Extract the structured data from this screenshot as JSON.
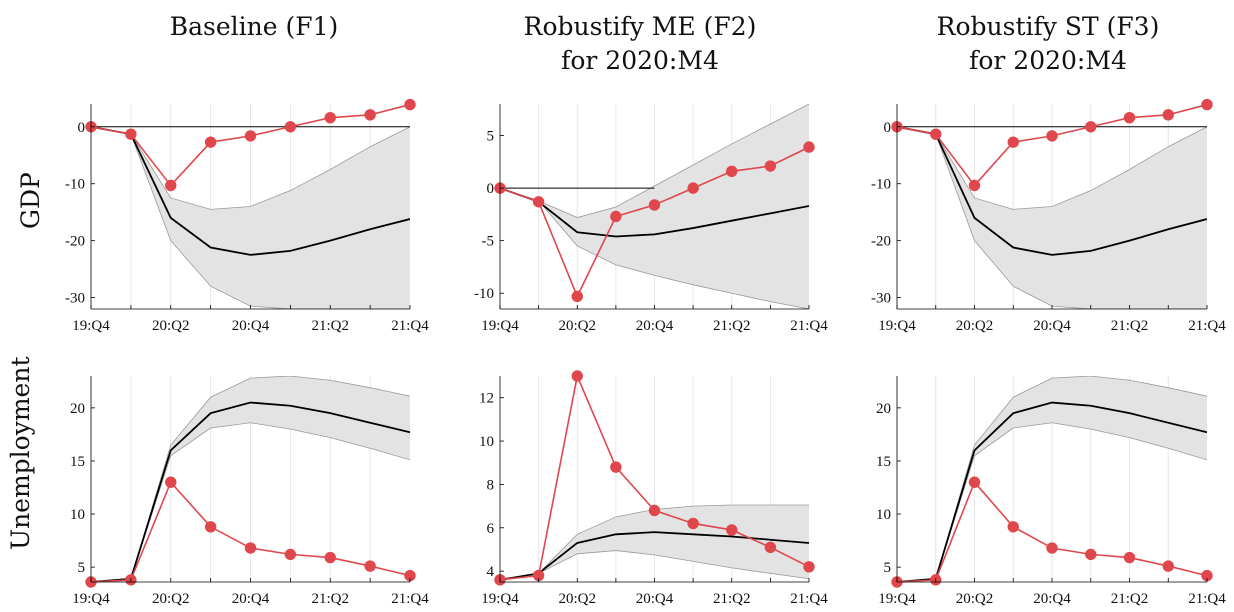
{
  "column_titles": [
    {
      "line1": "Baseline (F1)",
      "line2": ""
    },
    {
      "line1": "Robustify ME (F2)",
      "line2": "for 2020:M4"
    },
    {
      "line1": "Robustify ST (F3)",
      "line2": "for 2020:M4"
    }
  ],
  "row_labels": [
    "GDP",
    "Unemployment"
  ],
  "colors": {
    "median": "#000000",
    "observed": "#e0474c",
    "band": "#e3e3e3",
    "band_edge": "#9a9a9a",
    "grid": "#e6e6e6",
    "zero_line": "#000000"
  },
  "chart_data": [
    {
      "id": "gdp-baseline",
      "type": "line",
      "xlim": [
        0,
        8
      ],
      "ylim": [
        -32,
        4
      ],
      "categories": [
        "19:Q4",
        "20:Q1",
        "20:Q2",
        "20:Q3",
        "20:Q4",
        "21:Q1",
        "21:Q2",
        "21:Q3",
        "21:Q4"
      ],
      "xtick_labels": [
        "19:Q4",
        "",
        "20:Q2",
        "",
        "20:Q4",
        "",
        "21:Q2",
        "",
        "21:Q4"
      ],
      "yticks": [
        0,
        -10,
        -20,
        -30
      ],
      "ytick_labels": [
        "0",
        "-10",
        "-20",
        "-30"
      ],
      "zero_line": [
        0,
        8
      ],
      "band": {
        "upper": [
          0,
          -1.3,
          -12.5,
          -14.5,
          -14.0,
          -11.2,
          -7.5,
          -3.5,
          0
        ],
        "lower": [
          0,
          -1.3,
          -20,
          -28,
          -31.5,
          -32,
          -32,
          -32,
          -32
        ]
      },
      "series": [
        {
          "values": [
            0,
            -1.3,
            -16.0,
            -21.2,
            -22.5,
            -21.8,
            -20.0,
            -18.0,
            -16.2
          ]
        },
        {
          "values": [
            0,
            -1.3,
            -10.3,
            -2.7,
            -1.6,
            0,
            1.6,
            2.1,
            3.9
          ],
          "markers": true
        }
      ]
    },
    {
      "id": "gdp-robust-me",
      "type": "line",
      "xlim": [
        0,
        8
      ],
      "ylim": [
        -11.5,
        8
      ],
      "categories": [
        "19:Q4",
        "20:Q1",
        "20:Q2",
        "20:Q3",
        "20:Q4",
        "21:Q1",
        "21:Q2",
        "21:Q3",
        "21:Q4"
      ],
      "xtick_labels": [
        "19:Q4",
        "",
        "20:Q2",
        "",
        "20:Q4",
        "",
        "21:Q2",
        "",
        "21:Q4"
      ],
      "yticks": [
        5,
        0,
        -5,
        -10
      ],
      "ytick_labels": [
        "5",
        "0",
        "-5",
        "-10"
      ],
      "zero_line": [
        0,
        4
      ],
      "band": {
        "upper": [
          0,
          -1.2,
          -2.8,
          -1.8,
          0.2,
          2.2,
          4.2,
          6.1,
          8.0
        ],
        "lower": [
          0,
          -1.2,
          -5.5,
          -7.3,
          -8.3,
          -9.2,
          -10.0,
          -10.8,
          -11.5
        ]
      },
      "series": [
        {
          "values": [
            0,
            -1.3,
            -4.2,
            -4.6,
            -4.4,
            -3.8,
            -3.1,
            -2.4,
            -1.7
          ]
        },
        {
          "values": [
            0,
            -1.3,
            -10.3,
            -2.7,
            -1.6,
            0,
            1.6,
            2.1,
            3.9
          ],
          "markers": true
        }
      ]
    },
    {
      "id": "gdp-robust-st",
      "type": "line",
      "xlim": [
        0,
        8
      ],
      "ylim": [
        -32,
        4
      ],
      "categories": [
        "19:Q4",
        "20:Q1",
        "20:Q2",
        "20:Q3",
        "20:Q4",
        "21:Q1",
        "21:Q2",
        "21:Q3",
        "21:Q4"
      ],
      "xtick_labels": [
        "19:Q4",
        "",
        "20:Q2",
        "",
        "20:Q4",
        "",
        "21:Q2",
        "",
        "21:Q4"
      ],
      "yticks": [
        0,
        -10,
        -20,
        -30
      ],
      "ytick_labels": [
        "0",
        "-10",
        "-20",
        "-30"
      ],
      "zero_line": [
        0,
        8
      ],
      "band": {
        "upper": [
          0,
          -1.3,
          -12.5,
          -14.5,
          -14.0,
          -11.2,
          -7.5,
          -3.5,
          0
        ],
        "lower": [
          0,
          -1.3,
          -20,
          -28,
          -31.5,
          -32,
          -32,
          -32,
          -32
        ]
      },
      "series": [
        {
          "values": [
            0,
            -1.3,
            -16.0,
            -21.2,
            -22.5,
            -21.8,
            -20.0,
            -18.0,
            -16.2
          ]
        },
        {
          "values": [
            0,
            -1.3,
            -10.3,
            -2.7,
            -1.6,
            0,
            1.6,
            2.1,
            3.9
          ],
          "markers": true
        }
      ]
    },
    {
      "id": "unemp-baseline",
      "type": "line",
      "xlim": [
        0,
        8
      ],
      "ylim": [
        3.6,
        23
      ],
      "categories": [
        "19:Q4",
        "20:Q1",
        "20:Q2",
        "20:Q3",
        "20:Q4",
        "21:Q1",
        "21:Q2",
        "21:Q3",
        "21:Q4"
      ],
      "xtick_labels": [
        "19:Q4",
        "",
        "20:Q2",
        "",
        "20:Q4",
        "",
        "21:Q2",
        "",
        "21:Q4"
      ],
      "yticks": [
        20,
        15,
        10,
        5
      ],
      "ytick_labels": [
        "20",
        "15",
        "10",
        "5"
      ],
      "band": {
        "upper": [
          3.6,
          3.9,
          16.5,
          21.0,
          22.8,
          23.0,
          22.6,
          21.9,
          21.1
        ],
        "lower": [
          3.6,
          3.9,
          15.5,
          18.1,
          18.6,
          18.0,
          17.2,
          16.2,
          15.1
        ]
      },
      "series": [
        {
          "values": [
            3.6,
            3.9,
            16.0,
            19.5,
            20.5,
            20.2,
            19.5,
            18.6,
            17.7
          ]
        },
        {
          "values": [
            3.6,
            3.8,
            13.0,
            8.8,
            6.8,
            6.2,
            5.9,
            5.1,
            4.2
          ],
          "markers": true
        }
      ]
    },
    {
      "id": "unemp-robust-me",
      "type": "line",
      "xlim": [
        0,
        8
      ],
      "ylim": [
        3.5,
        13
      ],
      "categories": [
        "19:Q4",
        "20:Q1",
        "20:Q2",
        "20:Q3",
        "20:Q4",
        "21:Q1",
        "21:Q2",
        "21:Q3",
        "21:Q4"
      ],
      "xtick_labels": [
        "19:Q4",
        "",
        "20:Q2",
        "",
        "20:Q4",
        "",
        "21:Q2",
        "",
        "21:Q4"
      ],
      "yticks": [
        12,
        10,
        8,
        6,
        4
      ],
      "ytick_labels": [
        "12",
        "10",
        "8",
        "6",
        "4"
      ],
      "band": {
        "upper": [
          3.6,
          3.9,
          5.7,
          6.5,
          6.85,
          7.0,
          7.05,
          7.05,
          7.05
        ],
        "lower": [
          3.6,
          3.9,
          4.8,
          4.95,
          4.75,
          4.45,
          4.15,
          3.9,
          3.65
        ]
      },
      "series": [
        {
          "values": [
            3.6,
            3.9,
            5.3,
            5.7,
            5.8,
            5.7,
            5.6,
            5.45,
            5.3
          ]
        },
        {
          "values": [
            3.6,
            3.8,
            13.0,
            8.8,
            6.8,
            6.2,
            5.9,
            5.1,
            4.2
          ],
          "markers": true
        }
      ]
    },
    {
      "id": "unemp-robust-st",
      "type": "line",
      "xlim": [
        0,
        8
      ],
      "ylim": [
        3.6,
        23
      ],
      "categories": [
        "19:Q4",
        "20:Q1",
        "20:Q2",
        "20:Q3",
        "20:Q4",
        "21:Q1",
        "21:Q2",
        "21:Q3",
        "21:Q4"
      ],
      "xtick_labels": [
        "19:Q4",
        "",
        "20:Q2",
        "",
        "20:Q4",
        "",
        "21:Q2",
        "",
        "21:Q4"
      ],
      "yticks": [
        20,
        15,
        10,
        5
      ],
      "ytick_labels": [
        "20",
        "15",
        "10",
        "5"
      ],
      "band": {
        "upper": [
          3.6,
          3.9,
          16.5,
          21.0,
          22.8,
          23.0,
          22.6,
          21.9,
          21.1
        ],
        "lower": [
          3.6,
          3.9,
          15.5,
          18.1,
          18.6,
          18.0,
          17.2,
          16.2,
          15.1
        ]
      },
      "series": [
        {
          "values": [
            3.6,
            3.9,
            16.0,
            19.5,
            20.5,
            20.2,
            19.5,
            18.6,
            17.7
          ]
        },
        {
          "values": [
            3.6,
            3.8,
            13.0,
            8.8,
            6.8,
            6.2,
            5.9,
            5.1,
            4.2
          ],
          "markers": true
        }
      ]
    }
  ]
}
